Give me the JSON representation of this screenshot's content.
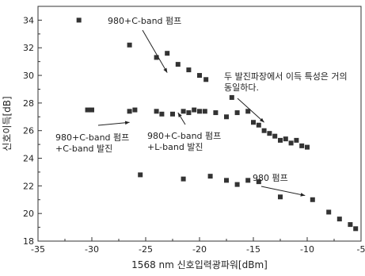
{
  "chart_data": {
    "type": "scatter",
    "title": "",
    "xlabel": "1568 nm 신호입력광파워[dBm]",
    "ylabel": "신호이득[dB]",
    "xlim": [
      -35,
      -5
    ],
    "ylim": [
      18,
      35
    ],
    "xticks": [
      -35,
      -30,
      -25,
      -20,
      -15,
      -10,
      -5
    ],
    "yticks": [
      18,
      20,
      22,
      24,
      26,
      28,
      30,
      32,
      34
    ],
    "grid": false,
    "marker": "square",
    "marker_color": "#333333",
    "series": [
      {
        "points": [
          [
            -31.2,
            34.0
          ],
          [
            -26.5,
            32.2
          ],
          [
            -24.0,
            31.3
          ],
          [
            -23.0,
            31.6
          ],
          [
            -22.0,
            30.8
          ],
          [
            -21.0,
            30.4
          ],
          [
            -20.0,
            30.0
          ],
          [
            -19.4,
            29.7
          ]
        ]
      },
      {
        "points": [
          [
            -30.4,
            27.5
          ],
          [
            -30.0,
            27.5
          ],
          [
            -26.5,
            27.4
          ],
          [
            -26.0,
            27.5
          ],
          [
            -24.0,
            27.4
          ],
          [
            -23.5,
            27.2
          ],
          [
            -22.5,
            27.2
          ],
          [
            -21.5,
            27.4
          ],
          [
            -21.0,
            27.3
          ],
          [
            -20.5,
            27.5
          ],
          [
            -20.0,
            27.4
          ],
          [
            -19.5,
            27.4
          ],
          [
            -18.5,
            27.3
          ],
          [
            -17.5,
            27.0
          ],
          [
            -17.0,
            28.4
          ],
          [
            -16.5,
            27.3
          ],
          [
            -15.5,
            27.4
          ],
          [
            -15.0,
            26.6
          ],
          [
            -14.5,
            26.4
          ],
          [
            -14.0,
            26.0
          ],
          [
            -13.5,
            25.8
          ],
          [
            -13.0,
            25.6
          ],
          [
            -12.5,
            25.3
          ],
          [
            -12.0,
            25.4
          ],
          [
            -11.5,
            25.1
          ],
          [
            -11.0,
            25.3
          ],
          [
            -10.5,
            24.9
          ],
          [
            -10.0,
            24.8
          ]
        ]
      },
      {
        "points": [
          [
            -25.5,
            22.8
          ],
          [
            -21.5,
            22.5
          ],
          [
            -19.0,
            22.7
          ],
          [
            -17.5,
            22.4
          ],
          [
            -16.5,
            22.1
          ],
          [
            -15.5,
            22.4
          ],
          [
            -14.5,
            22.3
          ],
          [
            -12.5,
            21.2
          ],
          [
            -9.5,
            21.0
          ],
          [
            -8.0,
            20.1
          ],
          [
            -7.0,
            19.6
          ],
          [
            -6.0,
            19.2
          ],
          [
            -5.5,
            18.9
          ]
        ]
      }
    ],
    "annotations": [
      {
        "lines": [
          "980+C-band 펌프"
        ],
        "arrow_to": [
          -23.0,
          30.2
        ]
      },
      {
        "lines": [
          "980+C-band 펌프",
          "+C-band 발진"
        ],
        "arrow_to": [
          -26.5,
          26.6
        ]
      },
      {
        "lines": [
          "980+C-band 펌프",
          "+L-band 발진"
        ],
        "arrow_to": [
          -22.0,
          27.3
        ]
      },
      {
        "lines": [
          "두 발진파장에서 이득 특성은 거의",
          "동일하다."
        ],
        "arrow_to": [
          -14.0,
          26.6
        ]
      },
      {
        "lines": [
          "980 펌프"
        ],
        "arrow_to": [
          -10.2,
          21.3
        ]
      }
    ]
  }
}
